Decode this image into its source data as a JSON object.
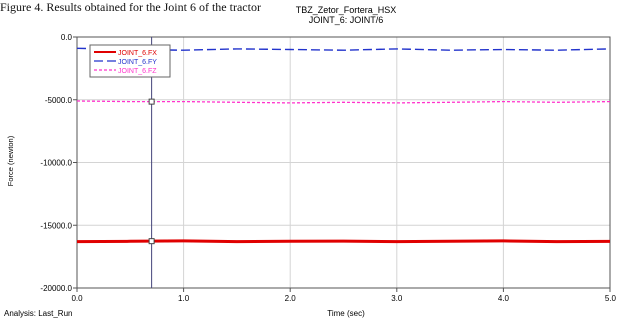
{
  "caption": "Figure 4. Results obtained for the Joint 6 of the tractor",
  "chart_data": {
    "type": "line",
    "title": "TBZ_Zetor_Fortera_HSX",
    "subtitle": "JOINT_6: JOINT/6",
    "xlabel": "Time (sec)",
    "ylabel": "Force (newton)",
    "xlim": [
      0.0,
      5.0
    ],
    "ylim": [
      -20000.0,
      0.0
    ],
    "x_ticks": [
      "0.0",
      "1.0",
      "2.0",
      "3.0",
      "4.0",
      "5.0"
    ],
    "y_ticks": [
      "0.0",
      "-5000.0",
      "-10000.0",
      "-15000.0",
      "-20000.0"
    ],
    "x_tick_values": [
      0,
      1,
      2,
      3,
      4,
      5
    ],
    "y_tick_values": [
      0,
      -5000,
      -10000,
      -15000,
      -20000
    ],
    "grid": true,
    "legend_position": "top-left",
    "cursor_x": 0.7,
    "analysis_label": "Analysis:  Last_Run",
    "series": [
      {
        "name": "JOINT_6.FX",
        "color": "#e00000",
        "style": "solid",
        "x": [
          0.0,
          0.5,
          1.0,
          1.5,
          2.0,
          2.5,
          3.0,
          3.5,
          4.0,
          4.5,
          5.0
        ],
        "values": [
          -16300,
          -16280,
          -16250,
          -16300,
          -16270,
          -16260,
          -16300,
          -16280,
          -16250,
          -16300,
          -16290
        ]
      },
      {
        "name": "JOINT_6.FY",
        "color": "#2233cc",
        "style": "dashed",
        "x": [
          0.0,
          0.5,
          1.0,
          1.5,
          2.0,
          2.5,
          3.0,
          3.5,
          4.0,
          4.5,
          5.0
        ],
        "values": [
          -900,
          -1000,
          -1050,
          -950,
          -1000,
          -1050,
          -950,
          -1050,
          -1000,
          -1050,
          -950
        ]
      },
      {
        "name": "JOINT_6.FZ",
        "color": "#ff33cc",
        "style": "dotted",
        "x": [
          0.0,
          0.5,
          1.0,
          1.5,
          2.0,
          2.5,
          3.0,
          3.5,
          4.0,
          4.5,
          5.0
        ],
        "values": [
          -5100,
          -5150,
          -5150,
          -5200,
          -5250,
          -5200,
          -5250,
          -5200,
          -5150,
          -5200,
          -5150
        ]
      }
    ]
  }
}
